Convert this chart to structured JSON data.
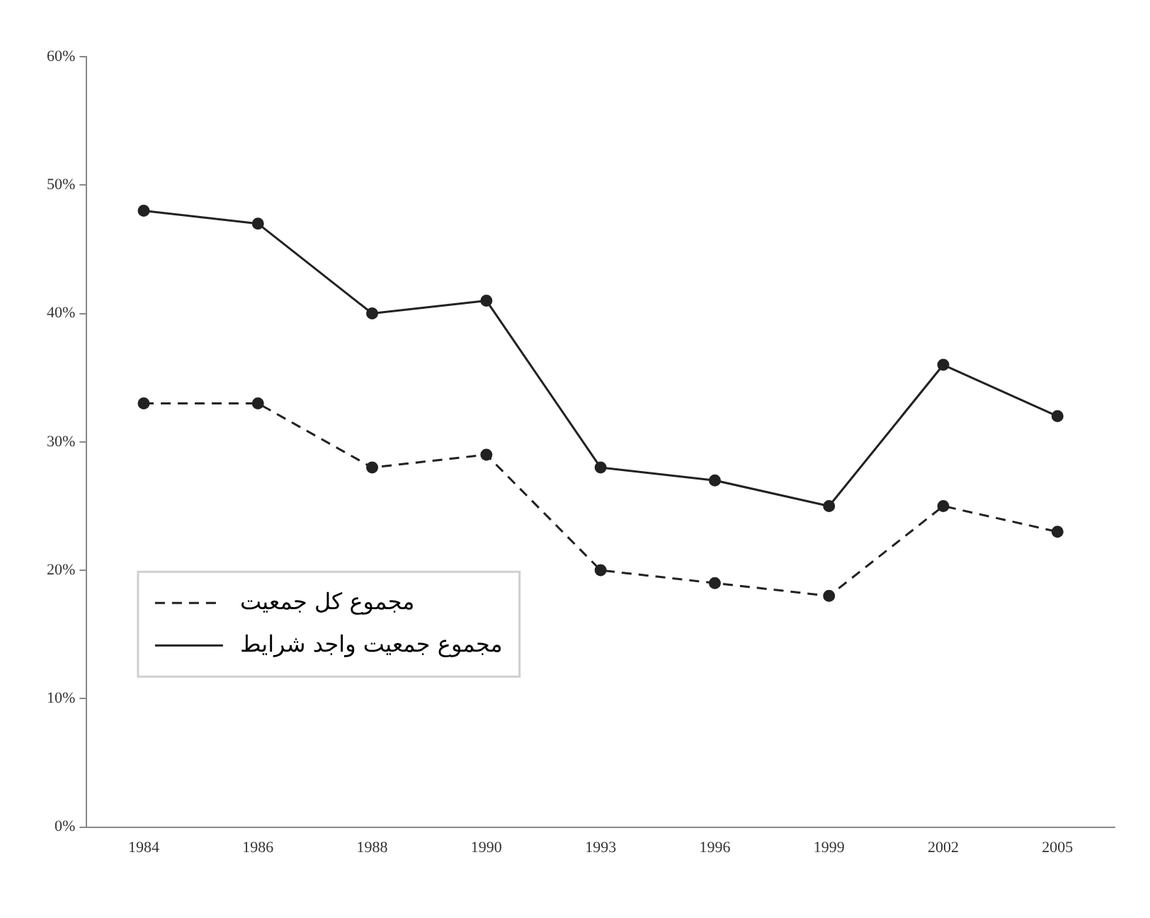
{
  "chart_data": {
    "type": "line",
    "categories": [
      "1984",
      "1986",
      "1988",
      "1990",
      "1993",
      "1996",
      "1999",
      "2002",
      "2005"
    ],
    "series": [
      {
        "name": "مجموع کل جمعیت",
        "color": "#222222",
        "line_style": "dashed",
        "values": [
          33,
          33,
          28,
          29,
          20,
          19,
          18,
          25,
          23
        ]
      },
      {
        "name": "مجموع جمعیت واجد شرایط",
        "color": "#222222",
        "line_style": "solid",
        "values": [
          48,
          47,
          40,
          41,
          28,
          27,
          25,
          36,
          32
        ]
      }
    ],
    "ylim": [
      0,
      60
    ],
    "yticks": [
      {
        "value": 0,
        "label": "0%"
      },
      {
        "value": 10,
        "label": "10%"
      },
      {
        "value": 20,
        "label": "20%"
      },
      {
        "value": 30,
        "label": "30%"
      },
      {
        "value": 40,
        "label": "40%"
      },
      {
        "value": 50,
        "label": "50%"
      },
      {
        "value": 60,
        "label": "60%"
      }
    ],
    "grid": false,
    "legend": "left",
    "marker": "circle"
  }
}
